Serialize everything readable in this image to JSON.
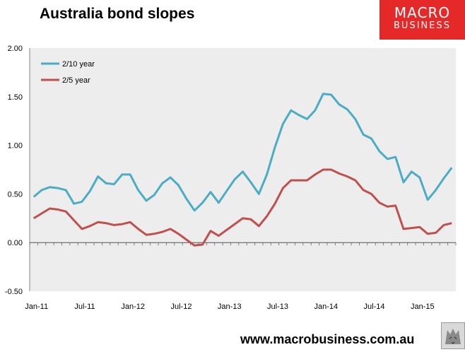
{
  "title": "Australia bond slopes",
  "logo": {
    "line1": "MACRO",
    "line2": "BUSINESS"
  },
  "footer": {
    "url": "www.macrobusiness.com.au"
  },
  "colors": {
    "series_210": "#4bacc6",
    "series_25": "#c0504d",
    "plot_bg": "#ededed",
    "logo_bg": "#e52828"
  },
  "chart_data": {
    "type": "line",
    "x_start": "2011-01",
    "x_step": "month",
    "x_tick_labels": [
      "Jan-11",
      "Jul-11",
      "Jan-12",
      "Jul-12",
      "Jan-13",
      "Jul-13",
      "Jan-14",
      "Jul-14",
      "Jan-15"
    ],
    "y_tick_labels": [
      "2.00",
      "1.50",
      "1.00",
      "0.50",
      "0.00",
      "-0.50"
    ],
    "ylim": [
      -0.5,
      2.0
    ],
    "y_step": 0.5,
    "grid": false,
    "legend_position": "top-left",
    "series": [
      {
        "name": "2/10 year",
        "color": "#4bacc6",
        "values": [
          0.47,
          0.54,
          0.57,
          0.56,
          0.54,
          0.4,
          0.42,
          0.53,
          0.68,
          0.61,
          0.6,
          0.7,
          0.7,
          0.54,
          0.43,
          0.49,
          0.61,
          0.67,
          0.59,
          0.45,
          0.33,
          0.41,
          0.52,
          0.41,
          0.53,
          0.65,
          0.73,
          0.62,
          0.5,
          0.7,
          0.98,
          1.22,
          1.36,
          1.31,
          1.27,
          1.36,
          1.53,
          1.52,
          1.42,
          1.37,
          1.27,
          1.11,
          1.07,
          0.94,
          0.86,
          0.88,
          0.62,
          0.73,
          0.67,
          0.44,
          0.54,
          0.66,
          0.77
        ]
      },
      {
        "name": "2/5 year",
        "color": "#c0504d",
        "values": [
          0.25,
          0.3,
          0.35,
          0.34,
          0.32,
          0.23,
          0.14,
          0.17,
          0.21,
          0.2,
          0.18,
          0.19,
          0.21,
          0.14,
          0.08,
          0.09,
          0.11,
          0.14,
          0.09,
          0.03,
          -0.03,
          -0.02,
          0.12,
          0.07,
          0.13,
          0.19,
          0.25,
          0.24,
          0.17,
          0.27,
          0.4,
          0.56,
          0.64,
          0.64,
          0.64,
          0.7,
          0.75,
          0.75,
          0.71,
          0.68,
          0.64,
          0.54,
          0.5,
          0.41,
          0.37,
          0.38,
          0.14,
          0.15,
          0.16,
          0.09,
          0.1,
          0.18,
          0.2
        ]
      }
    ]
  }
}
